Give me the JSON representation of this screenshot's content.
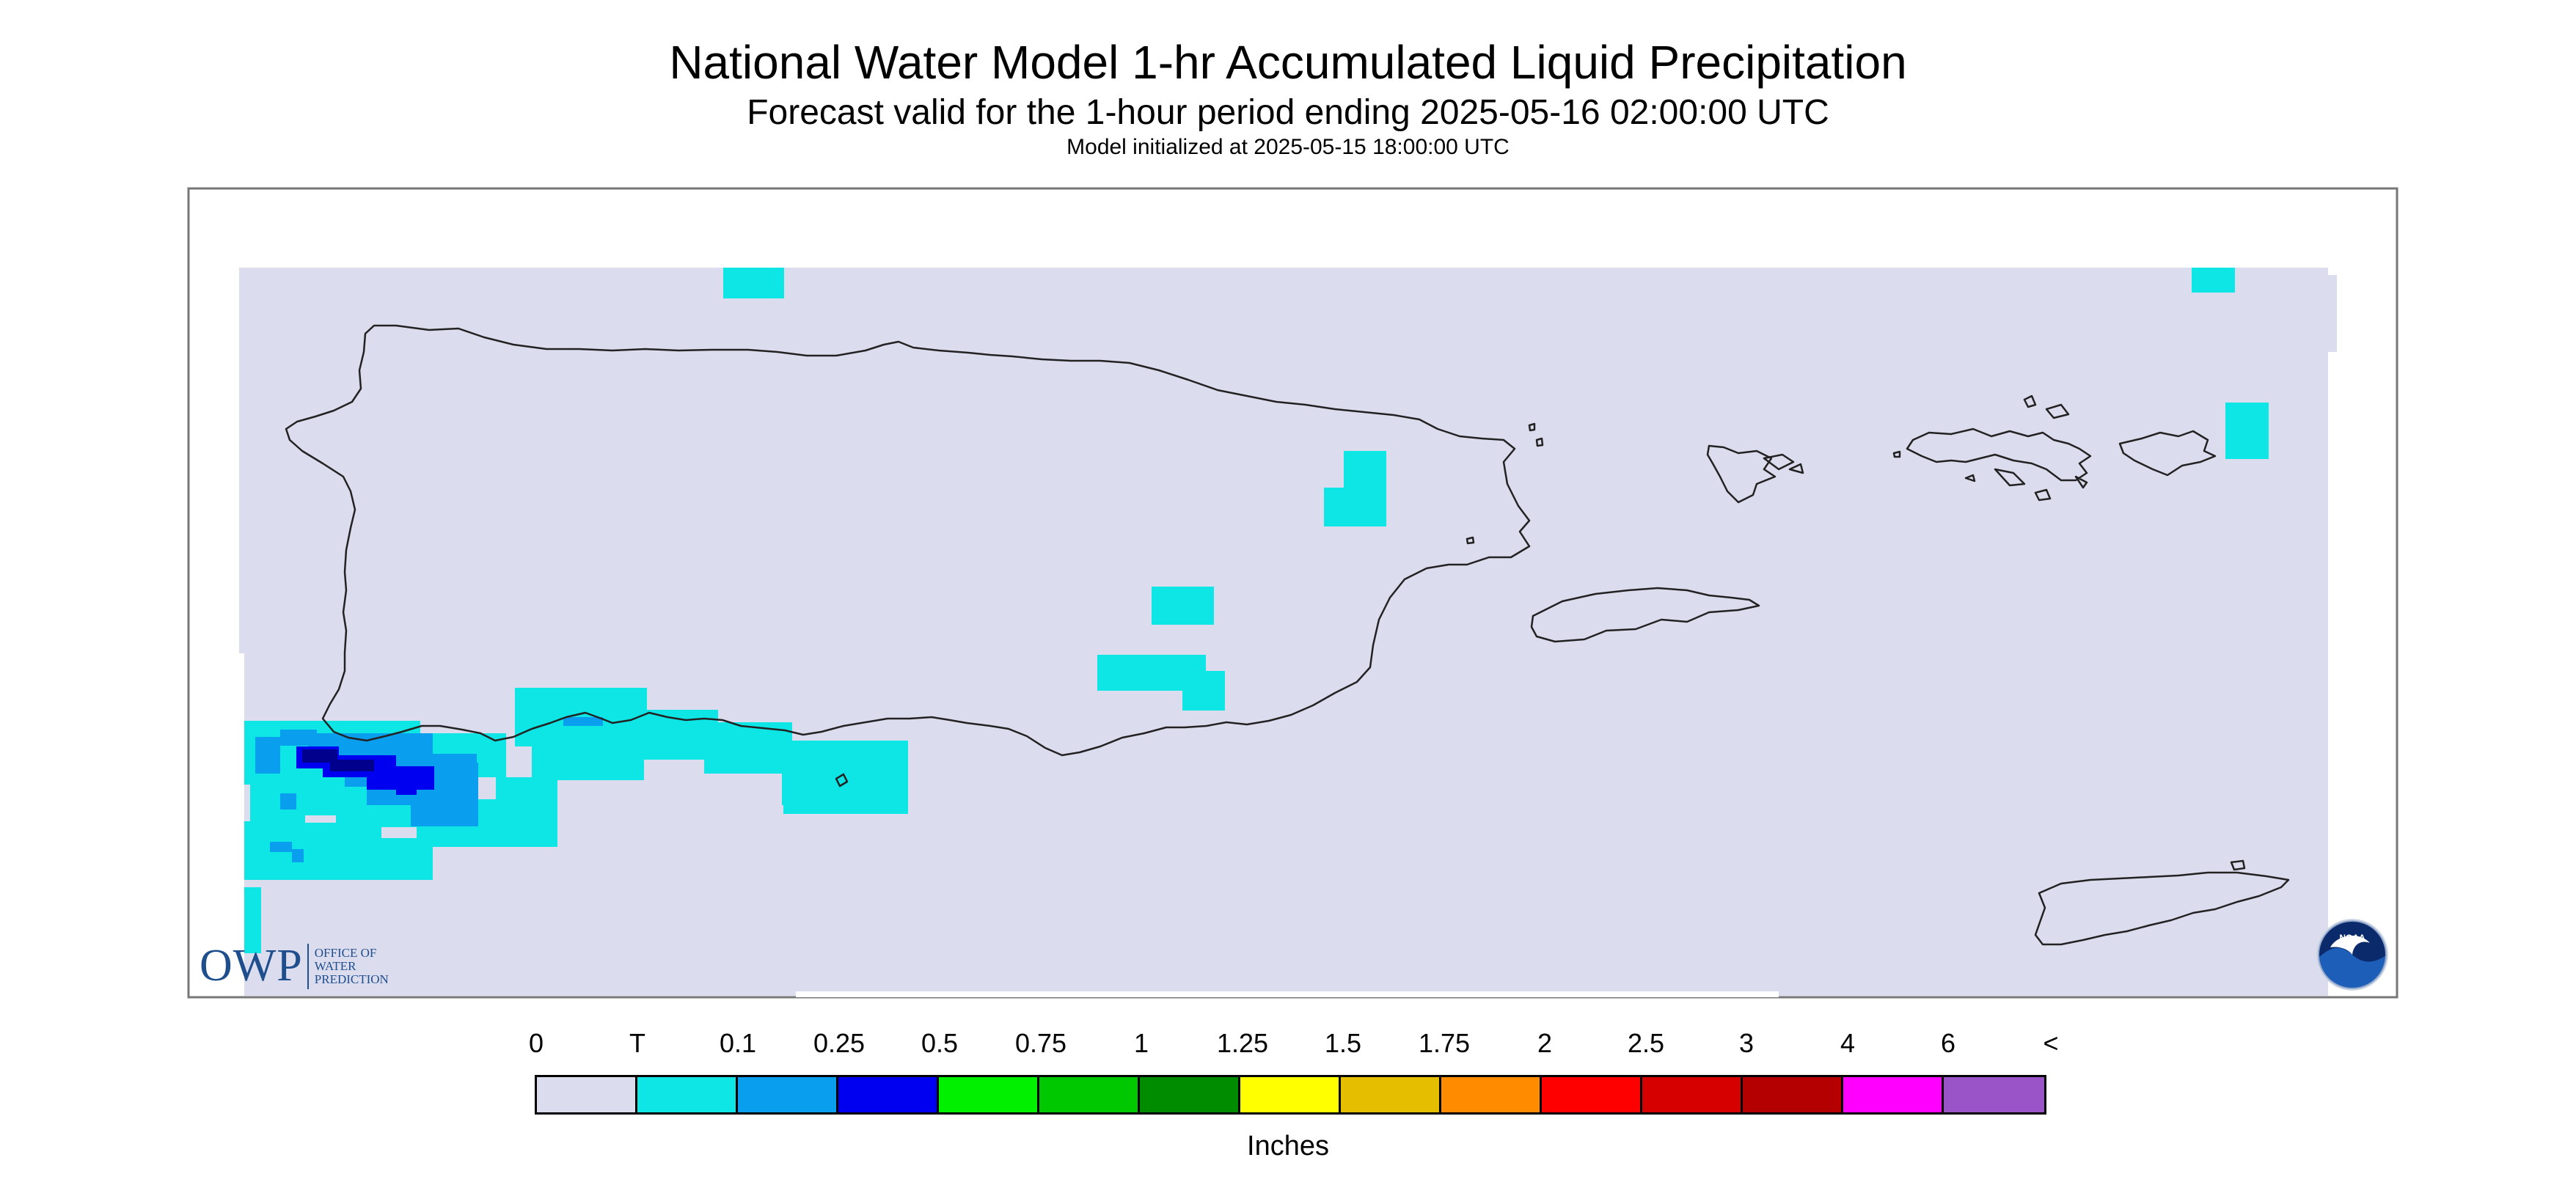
{
  "header": {
    "title": "National Water Model 1-hr Accumulated Liquid Precipitation",
    "subtitle": "Forecast valid for the 1-hour period ending 2025-05-16 02:00:00 UTC",
    "init_line": "Model initialized at 2025-05-15 18:00:00 UTC"
  },
  "legend": {
    "units": "Inches",
    "ticks": [
      "0",
      "T",
      "0.1",
      "0.25",
      "0.5",
      "0.75",
      "1",
      "1.25",
      "1.5",
      "1.75",
      "2",
      "2.5",
      "3",
      "4",
      "6",
      "<"
    ],
    "colors": [
      "#dcdcef",
      "#0ee5e5",
      "#0a9eef",
      "#0000f0",
      "#00f000",
      "#00c800",
      "#008c00",
      "#ffff00",
      "#e6be00",
      "#ff8c00",
      "#ff0000",
      "#d70000",
      "#b40000",
      "#ff00ff",
      "#9a54c8"
    ]
  },
  "map": {
    "background_color": "#dcdcef",
    "region_labels": []
  },
  "logos": {
    "owp_mark": "OWP",
    "owp_text": [
      "OFFICE OF",
      "WATER",
      "PREDICTION"
    ],
    "noaa_text": "NOAA",
    "noaa_icon": "noaa-emblem-icon"
  }
}
